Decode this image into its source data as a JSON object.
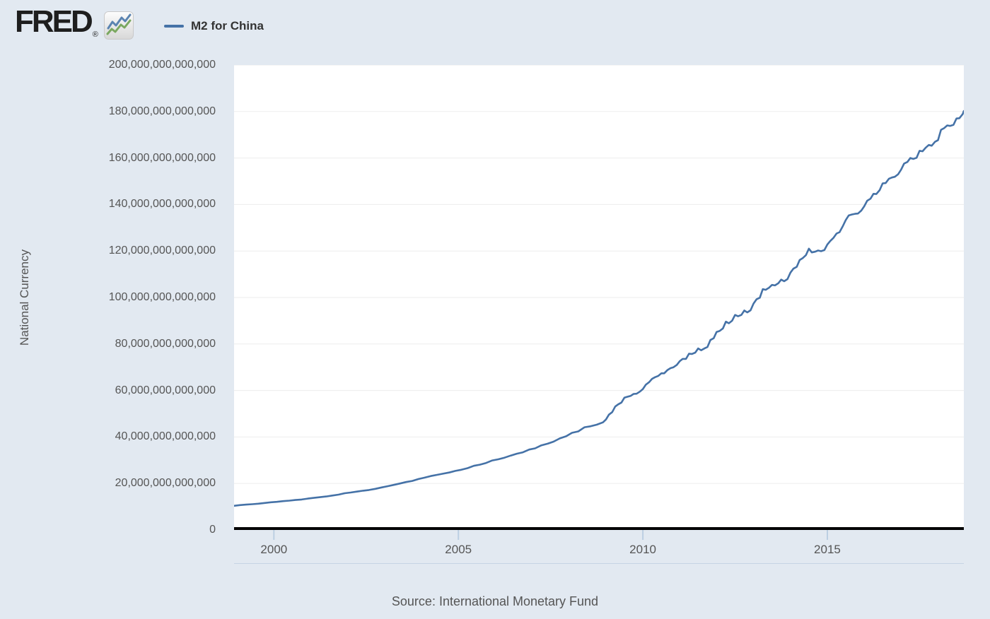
{
  "header": {
    "logo_text": "FRED",
    "logo_registered": "®",
    "logo_icon": "line-chart-icon",
    "legend": {
      "series_label": "M2 for China",
      "swatch_color": "#4572a7"
    }
  },
  "colors": {
    "page_bg": "#e2e9f1",
    "plot_bg": "#ffffff",
    "series_line": "#4572a7",
    "gridline": "#ededed",
    "tick_mark": "#bccfe3",
    "zero_axis": "#000000",
    "text_gray": "#555555",
    "legend_text": "#333333"
  },
  "chart_data": {
    "type": "line",
    "title": "M2 for China",
    "xlabel": "",
    "ylabel": "National Currency",
    "source": "Source: International Monetary Fund",
    "units": "National Currency; series point values stored in trillions",
    "unit_multiplier": 1000000000000,
    "grid": "horizontal-only",
    "legend_position": "top-left",
    "line_color": "#4572a7",
    "grid_color": "#ededed",
    "tick_color": "#bccfe3",
    "axis_color": "#000000",
    "xlim": [
      1998.92,
      2018.7
    ],
    "ylim": [
      0,
      200
    ],
    "y_ticks": [
      {
        "value": 0,
        "label": "0"
      },
      {
        "value": 20,
        "label": "20,000,000,000,000"
      },
      {
        "value": 40,
        "label": "40,000,000,000,000"
      },
      {
        "value": 60,
        "label": "60,000,000,000,000"
      },
      {
        "value": 80,
        "label": "80,000,000,000,000"
      },
      {
        "value": 100,
        "label": "100,000,000,000,000"
      },
      {
        "value": 120,
        "label": "120,000,000,000,000"
      },
      {
        "value": 140,
        "label": "140,000,000,000,000"
      },
      {
        "value": 160,
        "label": "160,000,000,000,000"
      },
      {
        "value": 180,
        "label": "180,000,000,000,000"
      },
      {
        "value": 200,
        "label": "200,000,000,000,000"
      }
    ],
    "x_ticks": [
      {
        "value": 2000,
        "label": "2000"
      },
      {
        "value": 2005,
        "label": "2005"
      },
      {
        "value": 2010,
        "label": "2010"
      },
      {
        "value": 2015,
        "label": "2015"
      }
    ],
    "series": [
      {
        "name": "M2 for China",
        "points": [
          [
            1998.92,
            10.4
          ],
          [
            1999.08,
            10.7
          ],
          [
            1999.25,
            10.9
          ],
          [
            1999.42,
            11.1
          ],
          [
            1999.58,
            11.3
          ],
          [
            1999.75,
            11.6
          ],
          [
            1999.92,
            11.9
          ],
          [
            2000.08,
            12.1
          ],
          [
            2000.25,
            12.4
          ],
          [
            2000.42,
            12.6
          ],
          [
            2000.58,
            12.9
          ],
          [
            2000.75,
            13.1
          ],
          [
            2000.92,
            13.5
          ],
          [
            2001.08,
            13.8
          ],
          [
            2001.25,
            14.1
          ],
          [
            2001.42,
            14.4
          ],
          [
            2001.58,
            14.8
          ],
          [
            2001.75,
            15.2
          ],
          [
            2001.92,
            15.8
          ],
          [
            2002.08,
            16.1
          ],
          [
            2002.25,
            16.5
          ],
          [
            2002.42,
            16.9
          ],
          [
            2002.58,
            17.2
          ],
          [
            2002.75,
            17.7
          ],
          [
            2002.92,
            18.3
          ],
          [
            2003.08,
            18.8
          ],
          [
            2003.25,
            19.4
          ],
          [
            2003.42,
            20.0
          ],
          [
            2003.58,
            20.6
          ],
          [
            2003.75,
            21.1
          ],
          [
            2003.92,
            21.9
          ],
          [
            2004.08,
            22.5
          ],
          [
            2004.25,
            23.2
          ],
          [
            2004.42,
            23.7
          ],
          [
            2004.58,
            24.2
          ],
          [
            2004.75,
            24.7
          ],
          [
            2004.92,
            25.4
          ],
          [
            2005.08,
            25.9
          ],
          [
            2005.25,
            26.6
          ],
          [
            2005.42,
            27.6
          ],
          [
            2005.58,
            28.1
          ],
          [
            2005.75,
            28.8
          ],
          [
            2005.92,
            29.9
          ],
          [
            2006.08,
            30.4
          ],
          [
            2006.25,
            31.1
          ],
          [
            2006.42,
            32.0
          ],
          [
            2006.58,
            32.8
          ],
          [
            2006.75,
            33.4
          ],
          [
            2006.92,
            34.6
          ],
          [
            2007.08,
            35.1
          ],
          [
            2007.25,
            36.4
          ],
          [
            2007.42,
            37.1
          ],
          [
            2007.58,
            38.0
          ],
          [
            2007.75,
            39.4
          ],
          [
            2007.92,
            40.3
          ],
          [
            2008.08,
            41.8
          ],
          [
            2008.25,
            42.4
          ],
          [
            2008.42,
            44.2
          ],
          [
            2008.58,
            44.6
          ],
          [
            2008.75,
            45.3
          ],
          [
            2008.92,
            46.3
          ],
          [
            2009.0,
            47.5
          ],
          [
            2009.08,
            49.6
          ],
          [
            2009.17,
            50.7
          ],
          [
            2009.25,
            53.1
          ],
          [
            2009.33,
            54.0
          ],
          [
            2009.42,
            54.8
          ],
          [
            2009.5,
            56.9
          ],
          [
            2009.58,
            57.3
          ],
          [
            2009.67,
            57.7
          ],
          [
            2009.75,
            58.5
          ],
          [
            2009.83,
            58.6
          ],
          [
            2009.92,
            59.5
          ],
          [
            2010.0,
            60.6
          ],
          [
            2010.08,
            62.5
          ],
          [
            2010.17,
            63.6
          ],
          [
            2010.25,
            65.0
          ],
          [
            2010.33,
            65.7
          ],
          [
            2010.42,
            66.3
          ],
          [
            2010.5,
            67.4
          ],
          [
            2010.58,
            67.4
          ],
          [
            2010.67,
            68.8
          ],
          [
            2010.75,
            69.6
          ],
          [
            2010.83,
            70.0
          ],
          [
            2010.92,
            71.0
          ],
          [
            2011.0,
            72.6
          ],
          [
            2011.08,
            73.6
          ],
          [
            2011.17,
            73.6
          ],
          [
            2011.25,
            75.8
          ],
          [
            2011.33,
            75.7
          ],
          [
            2011.42,
            76.3
          ],
          [
            2011.5,
            78.1
          ],
          [
            2011.58,
            77.3
          ],
          [
            2011.67,
            78.1
          ],
          [
            2011.75,
            78.7
          ],
          [
            2011.83,
            81.7
          ],
          [
            2011.92,
            82.5
          ],
          [
            2012.0,
            85.2
          ],
          [
            2012.08,
            85.6
          ],
          [
            2012.17,
            86.7
          ],
          [
            2012.25,
            89.6
          ],
          [
            2012.33,
            88.9
          ],
          [
            2012.42,
            90.0
          ],
          [
            2012.5,
            92.5
          ],
          [
            2012.58,
            91.9
          ],
          [
            2012.67,
            92.5
          ],
          [
            2012.75,
            94.4
          ],
          [
            2012.83,
            93.6
          ],
          [
            2012.92,
            94.5
          ],
          [
            2013.0,
            97.4
          ],
          [
            2013.08,
            99.2
          ],
          [
            2013.17,
            99.9
          ],
          [
            2013.25,
            103.6
          ],
          [
            2013.33,
            103.3
          ],
          [
            2013.42,
            104.2
          ],
          [
            2013.5,
            105.4
          ],
          [
            2013.58,
            105.2
          ],
          [
            2013.67,
            106.1
          ],
          [
            2013.75,
            107.7
          ],
          [
            2013.83,
            107.0
          ],
          [
            2013.92,
            107.9
          ],
          [
            2014.0,
            110.7
          ],
          [
            2014.08,
            112.4
          ],
          [
            2014.17,
            113.2
          ],
          [
            2014.25,
            116.1
          ],
          [
            2014.33,
            116.9
          ],
          [
            2014.42,
            118.2
          ],
          [
            2014.5,
            121.0
          ],
          [
            2014.58,
            119.4
          ],
          [
            2014.67,
            119.7
          ],
          [
            2014.75,
            120.2
          ],
          [
            2014.83,
            119.9
          ],
          [
            2014.92,
            120.4
          ],
          [
            2015.0,
            122.8
          ],
          [
            2015.08,
            124.3
          ],
          [
            2015.17,
            125.7
          ],
          [
            2015.25,
            127.5
          ],
          [
            2015.33,
            128.1
          ],
          [
            2015.42,
            130.7
          ],
          [
            2015.5,
            133.3
          ],
          [
            2015.58,
            135.3
          ],
          [
            2015.67,
            135.7
          ],
          [
            2015.75,
            136.0
          ],
          [
            2015.83,
            136.1
          ],
          [
            2015.92,
            137.4
          ],
          [
            2016.0,
            139.2
          ],
          [
            2016.08,
            141.6
          ],
          [
            2016.17,
            142.5
          ],
          [
            2016.25,
            144.6
          ],
          [
            2016.33,
            144.5
          ],
          [
            2016.42,
            146.2
          ],
          [
            2016.5,
            149.1
          ],
          [
            2016.58,
            149.2
          ],
          [
            2016.67,
            151.1
          ],
          [
            2016.75,
            151.6
          ],
          [
            2016.83,
            151.9
          ],
          [
            2016.92,
            153.0
          ],
          [
            2017.0,
            155.0
          ],
          [
            2017.08,
            157.6
          ],
          [
            2017.17,
            158.3
          ],
          [
            2017.25,
            160.0
          ],
          [
            2017.33,
            159.6
          ],
          [
            2017.42,
            160.1
          ],
          [
            2017.5,
            163.1
          ],
          [
            2017.58,
            162.9
          ],
          [
            2017.67,
            164.5
          ],
          [
            2017.75,
            165.6
          ],
          [
            2017.83,
            165.3
          ],
          [
            2017.92,
            167.0
          ],
          [
            2018.0,
            167.7
          ],
          [
            2018.08,
            172.1
          ],
          [
            2018.17,
            172.9
          ],
          [
            2018.25,
            174.0
          ],
          [
            2018.33,
            173.8
          ],
          [
            2018.42,
            174.3
          ],
          [
            2018.5,
            177.0
          ],
          [
            2018.58,
            177.1
          ],
          [
            2018.67,
            178.9
          ],
          [
            2018.7,
            180.2
          ]
        ]
      }
    ]
  }
}
